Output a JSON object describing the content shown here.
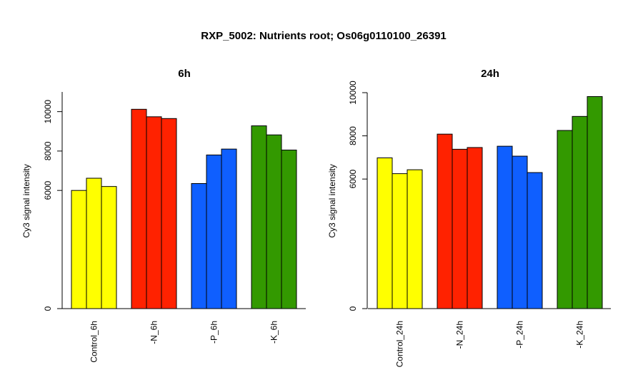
{
  "title": "RXP_5002: Nutrients root; Os06g0110100_26391",
  "chart_data": [
    {
      "type": "bar",
      "title": "6h",
      "ylabel": "Cy3 signal intensity",
      "ylim": [
        0,
        11000
      ],
      "yticks": [
        0,
        6000,
        8000,
        10000
      ],
      "categories": [
        "Control_6h",
        "-N_6h",
        "-P_6h",
        "-K_6h"
      ],
      "group_colors": [
        "#FFFF00",
        "#FF2200",
        "#0F5FFF",
        "#339900"
      ],
      "values": [
        [
          6000,
          6620,
          6200
        ],
        [
          10120,
          9740,
          9650
        ],
        [
          6350,
          7800,
          8100
        ],
        [
          9280,
          8820,
          8050
        ]
      ]
    },
    {
      "type": "bar",
      "title": "24h",
      "ylabel": "Cy3 signal intensity",
      "ylim": [
        0,
        10000
      ],
      "yticks": [
        0,
        6000,
        8000,
        10000
      ],
      "categories": [
        "Control_24h",
        "-N_24h",
        "-P_24h",
        "-K_24h"
      ],
      "group_colors": [
        "#FFFF00",
        "#FF2200",
        "#0F5FFF",
        "#339900"
      ],
      "values": [
        [
          6980,
          6250,
          6430
        ],
        [
          8080,
          7380,
          7460
        ],
        [
          7520,
          7060,
          6300
        ],
        [
          8250,
          8900,
          9820
        ]
      ]
    }
  ]
}
